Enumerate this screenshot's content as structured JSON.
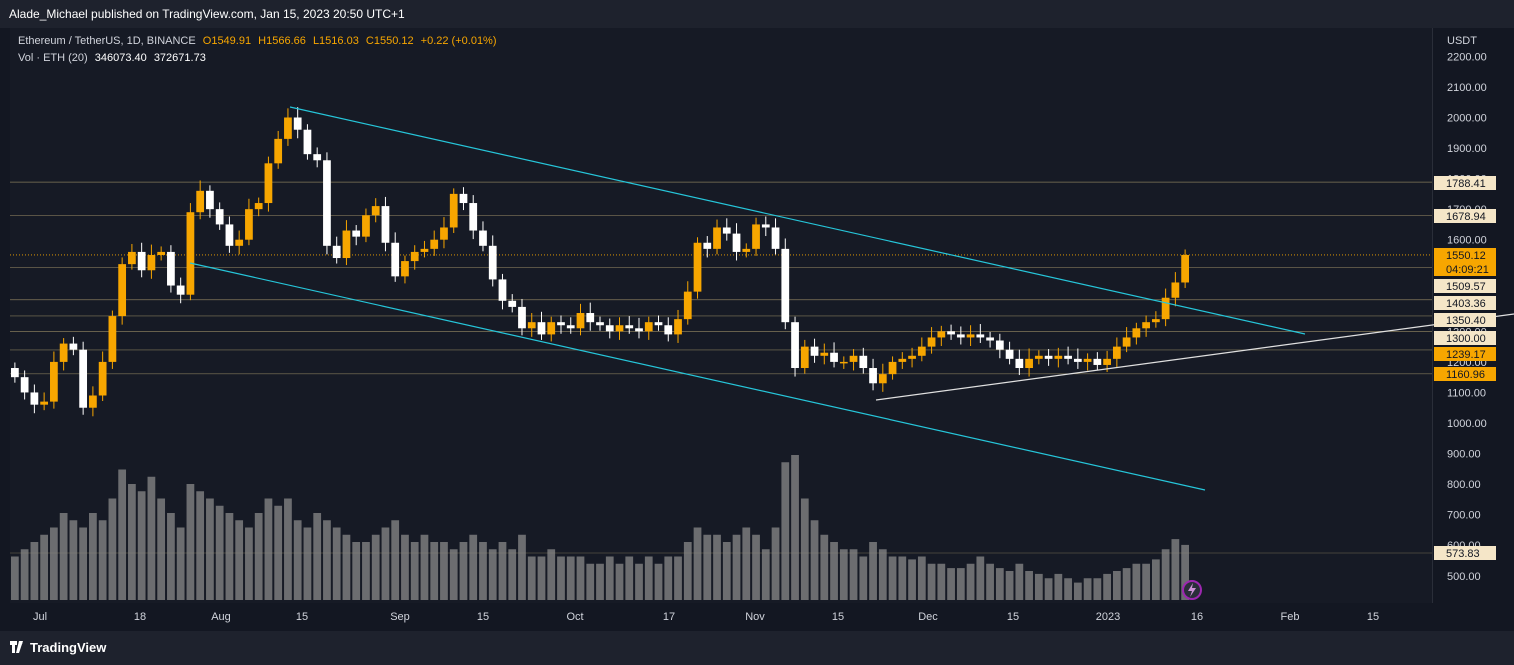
{
  "header": {
    "publisher": "Alade_Michael published on TradingView.com, Jan 15, 2023 20:50 UTC+1"
  },
  "legend": {
    "symbol": "Ethereum / TetherUS, 1D, BINANCE",
    "open": "O1549.91",
    "high": "H1566.66",
    "low": "L1516.03",
    "close": "C1550.12",
    "change": "+0.22 (+0.01%)",
    "vol_label": "Vol · ETH (20)",
    "vol_value": "346073.40",
    "vol_ma": "372671.73"
  },
  "axis": {
    "currency": "USDT",
    "price_ticks": [
      "2200.00",
      "2100.00",
      "2000.00",
      "1900.00",
      "1800.00",
      "1700.00",
      "1600.00",
      "1500.00",
      "1400.00",
      "1300.00",
      "1200.00",
      "1100.00",
      "1000.00",
      "900.00",
      "800.00",
      "700.00",
      "600.00",
      "500.00"
    ],
    "time_ticks": [
      "Jul",
      "18",
      "Aug",
      "15",
      "Sep",
      "15",
      "Oct",
      "17",
      "Nov",
      "15",
      "Dec",
      "15",
      "2023",
      "16",
      "Feb",
      "15"
    ]
  },
  "price_labels": [
    {
      "text": "1788.41",
      "style": "light"
    },
    {
      "text": "1678.94",
      "style": "light"
    },
    {
      "text": "1550.12",
      "style": "orange"
    },
    {
      "text": "04:09:21",
      "style": "orange"
    },
    {
      "text": "1509.57",
      "style": "light"
    },
    {
      "text": "1403.36",
      "style": "light"
    },
    {
      "text": "1350.40",
      "style": "light"
    },
    {
      "text": "1300.00",
      "style": "light"
    },
    {
      "text": "1239.17",
      "style": "orange"
    },
    {
      "text": "1160.96",
      "style": "orange"
    },
    {
      "text": "573.83",
      "style": "light"
    }
  ],
  "footer": {
    "brand": "TradingView"
  },
  "colors": {
    "background": "#161a25",
    "up": "#f7a600",
    "down": "#ffffff",
    "channel": "#26c6da",
    "trendline": "#e0e0e0",
    "level": "#b0a070",
    "volume": "#8a8a8a"
  },
  "chart_data": {
    "type": "candlestick",
    "symbol": "ETH/USDT",
    "timeframe": "1D",
    "ylim": [
      450,
      2250
    ],
    "last_price": 1550.12,
    "horizontal_levels": [
      1788.41,
      1678.94,
      1509.57,
      1403.36,
      1350.4,
      1300.0,
      1239.17,
      1160.96
    ],
    "volume_level": 573.83,
    "candles_approx_closes": [
      1150,
      1100,
      1060,
      1070,
      1200,
      1260,
      1240,
      1050,
      1090,
      1200,
      1350,
      1520,
      1560,
      1500,
      1550,
      1560,
      1450,
      1420,
      1690,
      1760,
      1700,
      1650,
      1580,
      1600,
      1700,
      1720,
      1850,
      1930,
      2000,
      1960,
      1880,
      1860,
      1580,
      1540,
      1630,
      1610,
      1680,
      1710,
      1590,
      1480,
      1530,
      1560,
      1570,
      1600,
      1640,
      1750,
      1720,
      1630,
      1580,
      1470,
      1400,
      1380,
      1310,
      1330,
      1290,
      1330,
      1320,
      1310,
      1360,
      1330,
      1320,
      1300,
      1320,
      1310,
      1300,
      1330,
      1320,
      1290,
      1340,
      1430,
      1590,
      1570,
      1640,
      1620,
      1560,
      1570,
      1650,
      1640,
      1570,
      1330,
      1180,
      1250,
      1220,
      1230,
      1200,
      1200,
      1220,
      1180,
      1130,
      1160,
      1200,
      1210,
      1220,
      1250,
      1280,
      1300,
      1290,
      1280,
      1290,
      1280,
      1270,
      1240,
      1210,
      1180,
      1210,
      1220,
      1210,
      1220,
      1210,
      1200,
      1210,
      1190,
      1210,
      1250,
      1280,
      1310,
      1330,
      1340,
      1410,
      1460,
      1550
    ],
    "volume_max": 900
  }
}
